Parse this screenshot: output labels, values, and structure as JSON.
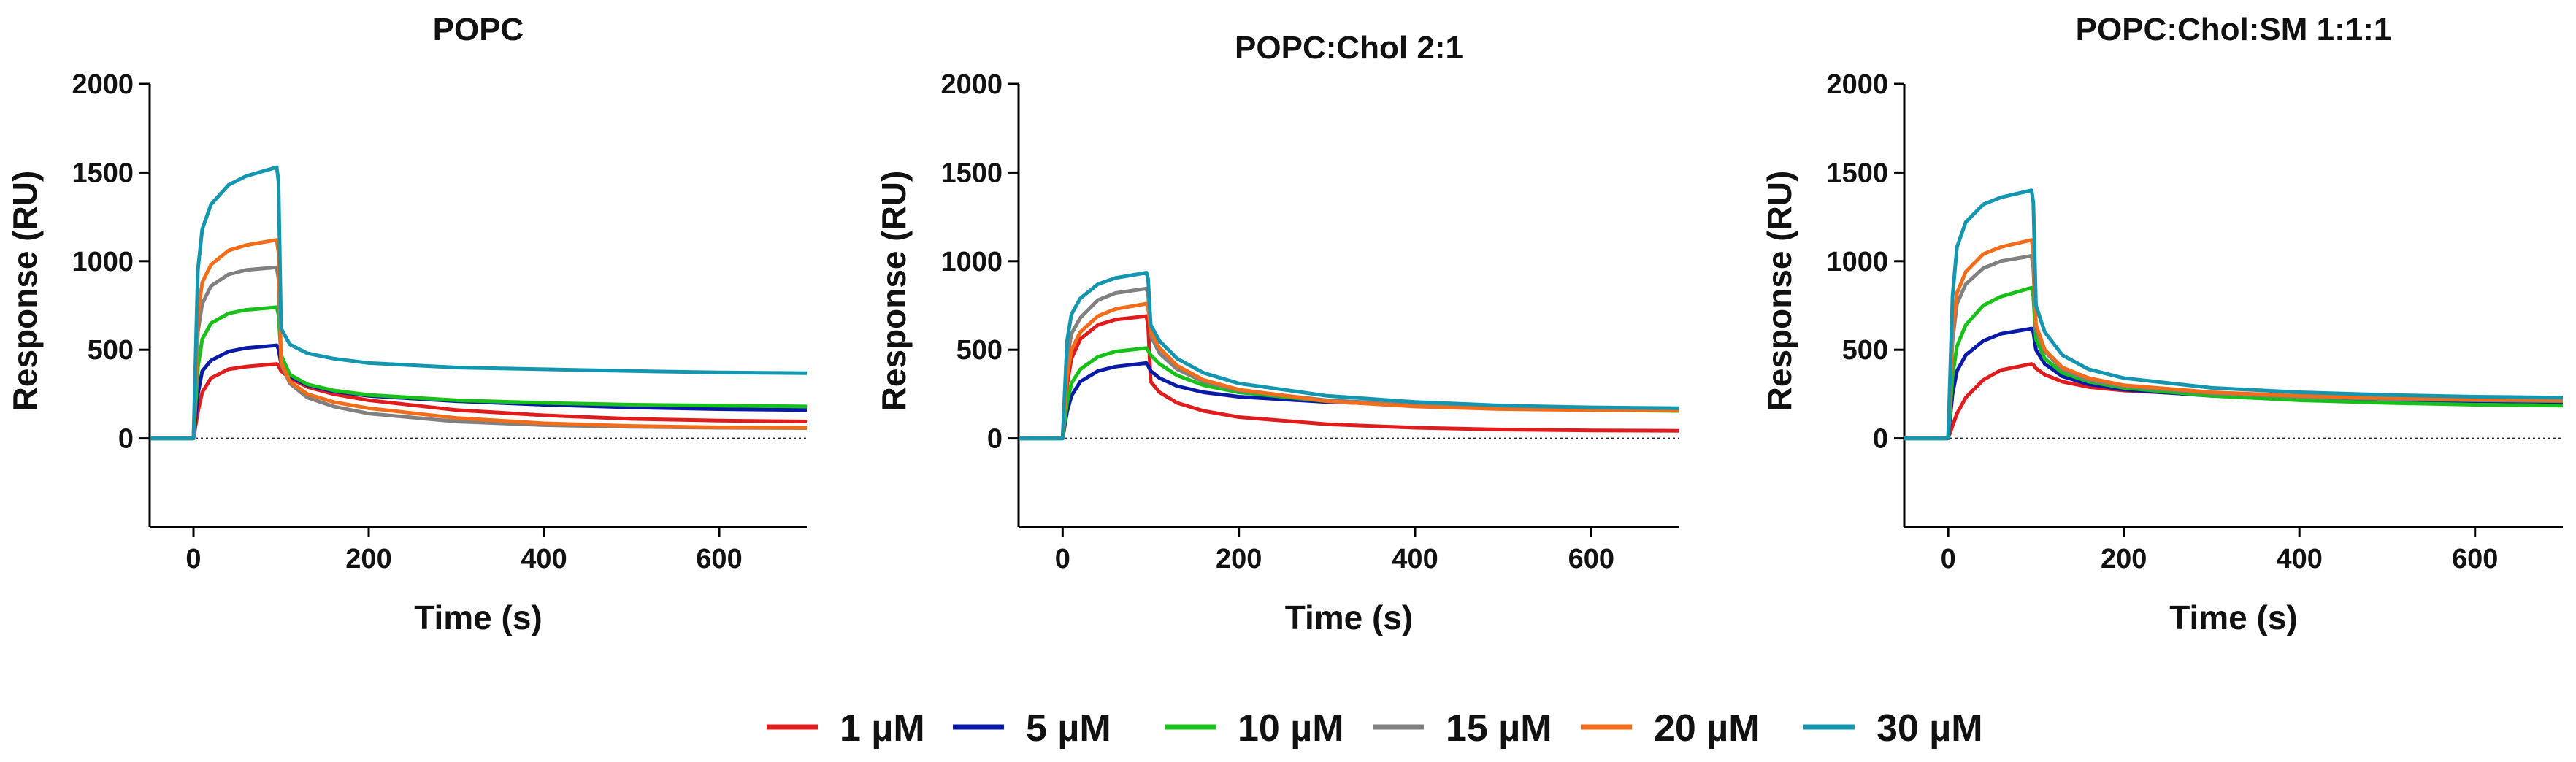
{
  "series_style": [
    {
      "name": "1 µM",
      "color": "#e01c1c"
    },
    {
      "name": "5 µM",
      "color": "#0a1aa8"
    },
    {
      "name": "10 µM",
      "color": "#17c11a"
    },
    {
      "name": "15 µM",
      "color": "#808080"
    },
    {
      "name": "20 µM",
      "color": "#f26c1a"
    },
    {
      "name": "30 µM",
      "color": "#1596b0"
    }
  ],
  "chart_data": [
    {
      "type": "line",
      "title": "POPC",
      "xlabel": "Time (s)",
      "ylabel": "Response (RU)",
      "xlim": [
        -50,
        700
      ],
      "ylim": [
        -500,
        2000
      ],
      "xticks": [
        0,
        200,
        400,
        600
      ],
      "yticks": [
        0,
        500,
        1000,
        1500,
        2000
      ],
      "ytick_labels": [
        "0",
        "500",
        "1000",
        "1500",
        "2000"
      ],
      "zero_line": true,
      "injection_start": 0,
      "injection_end": 95,
      "x": [
        -50,
        0,
        5,
        10,
        20,
        40,
        60,
        95,
        97,
        100,
        110,
        130,
        160,
        200,
        300,
        400,
        500,
        600,
        700
      ],
      "series": [
        {
          "name": "1 µM",
          "values": [
            0,
            0,
            150,
            260,
            340,
            390,
            405,
            420,
            410,
            380,
            340,
            290,
            250,
            215,
            160,
            130,
            110,
            100,
            95
          ]
        },
        {
          "name": "5 µM",
          "values": [
            0,
            0,
            250,
            380,
            440,
            490,
            510,
            525,
            505,
            420,
            350,
            300,
            265,
            240,
            210,
            190,
            175,
            165,
            160
          ]
        },
        {
          "name": "10 µM",
          "values": [
            0,
            0,
            400,
            560,
            650,
            705,
            725,
            740,
            700,
            470,
            360,
            305,
            270,
            245,
            215,
            200,
            190,
            185,
            180
          ]
        },
        {
          "name": "15 µM",
          "values": [
            0,
            0,
            600,
            760,
            860,
            925,
            950,
            965,
            900,
            420,
            310,
            230,
            180,
            140,
            95,
            75,
            65,
            60,
            58
          ]
        },
        {
          "name": "20 µM",
          "values": [
            0,
            0,
            700,
            880,
            980,
            1060,
            1090,
            1120,
            1050,
            430,
            320,
            250,
            205,
            170,
            115,
            85,
            70,
            62,
            60
          ]
        },
        {
          "name": "30 µM",
          "values": [
            0,
            0,
            950,
            1180,
            1320,
            1430,
            1480,
            1530,
            1450,
            620,
            530,
            480,
            450,
            425,
            400,
            390,
            380,
            372,
            368
          ]
        }
      ]
    },
    {
      "type": "line",
      "title": "POPC:Chol 2:1",
      "xlabel": "Time (s)",
      "ylabel": "Response (RU)",
      "xlim": [
        -50,
        700
      ],
      "ylim": [
        -500,
        2000
      ],
      "xticks": [
        0,
        200,
        400,
        600
      ],
      "yticks": [
        0,
        500,
        1000,
        1500,
        2000
      ],
      "ytick_labels": [
        "0",
        "500",
        "1000",
        "1500",
        "2000"
      ],
      "zero_line": true,
      "injection_start": 0,
      "injection_end": 95,
      "x": [
        -50,
        0,
        5,
        10,
        20,
        40,
        60,
        95,
        97,
        100,
        110,
        130,
        160,
        200,
        300,
        400,
        500,
        600,
        700
      ],
      "series": [
        {
          "name": "1 µM",
          "values": [
            0,
            0,
            300,
            450,
            560,
            640,
            670,
            690,
            640,
            320,
            260,
            200,
            155,
            120,
            80,
            60,
            50,
            45,
            43
          ]
        },
        {
          "name": "5 µM",
          "values": [
            0,
            0,
            150,
            240,
            320,
            380,
            405,
            425,
            410,
            380,
            340,
            295,
            260,
            235,
            205,
            190,
            180,
            172,
            168
          ]
        },
        {
          "name": "10 µM",
          "values": [
            0,
            0,
            200,
            310,
            390,
            460,
            490,
            510,
            495,
            470,
            420,
            355,
            300,
            260,
            210,
            185,
            170,
            160,
            155
          ]
        },
        {
          "name": "15 µM",
          "values": [
            0,
            0,
            450,
            590,
            680,
            780,
            820,
            845,
            815,
            580,
            480,
            390,
            320,
            270,
            215,
            190,
            175,
            165,
            160
          ]
        },
        {
          "name": "20 µM",
          "values": [
            0,
            0,
            350,
            500,
            600,
            690,
            730,
            760,
            740,
            600,
            510,
            410,
            330,
            275,
            210,
            180,
            165,
            160,
            158
          ]
        },
        {
          "name": "30 µM",
          "values": [
            0,
            0,
            550,
            700,
            790,
            870,
            905,
            935,
            900,
            640,
            550,
            450,
            370,
            310,
            240,
            205,
            185,
            175,
            170
          ]
        }
      ]
    },
    {
      "type": "line",
      "title": "POPC:Chol:SM 1:1:1",
      "xlabel": "Time (s)",
      "ylabel": "Response (RU)",
      "xlim": [
        -50,
        700
      ],
      "ylim": [
        -500,
        2000
      ],
      "xticks": [
        0,
        200,
        400,
        600
      ],
      "yticks": [
        0,
        500,
        1000,
        1500,
        2000
      ],
      "ytick_labels": [
        "0",
        "500",
        "1000",
        "1500",
        "2000"
      ],
      "zero_line": true,
      "injection_start": 0,
      "injection_end": 95,
      "x": [
        -50,
        0,
        5,
        10,
        20,
        40,
        60,
        95,
        97,
        100,
        110,
        130,
        160,
        200,
        300,
        400,
        500,
        600,
        700
      ],
      "series": [
        {
          "name": "1 µM",
          "values": [
            0,
            0,
            70,
            140,
            230,
            330,
            385,
            420,
            415,
            395,
            360,
            320,
            290,
            270,
            245,
            230,
            220,
            212,
            208
          ]
        },
        {
          "name": "5 µM",
          "values": [
            0,
            0,
            250,
            380,
            470,
            550,
            590,
            620,
            600,
            500,
            420,
            350,
            305,
            275,
            240,
            225,
            215,
            210,
            205
          ]
        },
        {
          "name": "10 µM",
          "values": [
            0,
            0,
            350,
            520,
            640,
            750,
            800,
            850,
            800,
            560,
            450,
            370,
            320,
            285,
            240,
            215,
            200,
            190,
            185
          ]
        },
        {
          "name": "15 µM",
          "values": [
            0,
            0,
            550,
            760,
            870,
            960,
            1000,
            1030,
            960,
            620,
            490,
            390,
            330,
            295,
            255,
            235,
            222,
            215,
            210
          ]
        },
        {
          "name": "20 µM",
          "values": [
            0,
            0,
            600,
            820,
            940,
            1040,
            1080,
            1120,
            1050,
            640,
            500,
            400,
            340,
            300,
            260,
            240,
            228,
            220,
            215
          ]
        },
        {
          "name": "30 µM",
          "values": [
            0,
            0,
            800,
            1080,
            1220,
            1320,
            1360,
            1400,
            1330,
            750,
            600,
            470,
            390,
            340,
            285,
            260,
            245,
            235,
            230
          ]
        }
      ]
    }
  ]
}
